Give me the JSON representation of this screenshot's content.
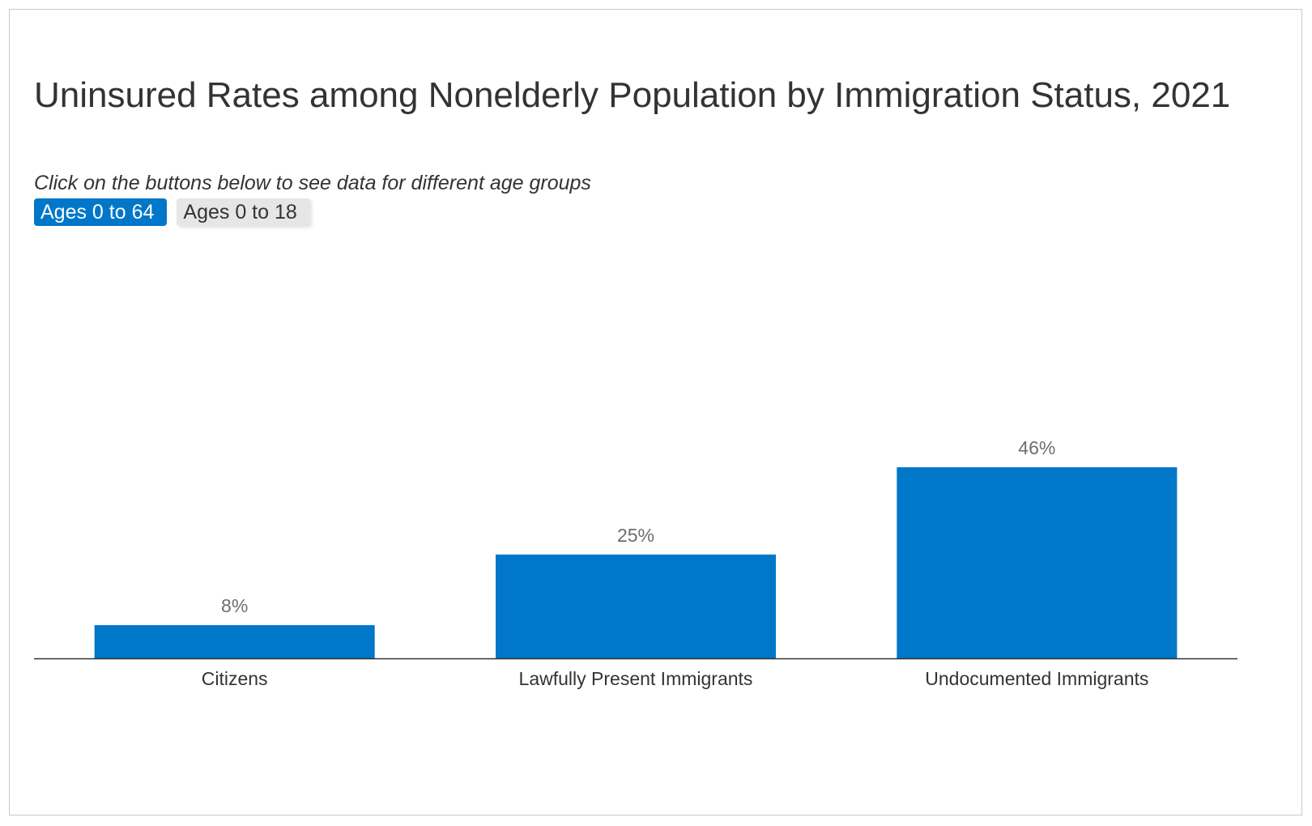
{
  "header": {
    "title": "Uninsured Rates among Nonelderly Population by Immigration Status, 2021",
    "subtitle": "Click on the buttons below to see data for different age groups"
  },
  "filters": {
    "buttons": [
      {
        "label": "Ages 0 to 64",
        "active": true
      },
      {
        "label": "Ages 0 to 18",
        "active": false
      }
    ]
  },
  "colors": {
    "bar": "#0077c8",
    "button_active": "#0077c8",
    "button_inactive": "#e6e6e6"
  },
  "chart_data": {
    "type": "bar",
    "title": "Uninsured Rates among Nonelderly Population by Immigration Status, 2021",
    "xlabel": "",
    "ylabel": "",
    "categories": [
      "Citizens",
      "Lawfully Present Immigrants",
      "Undocumented Immigrants"
    ],
    "values": [
      8,
      25,
      46
    ],
    "value_labels": [
      "8%",
      "25%",
      "46%"
    ],
    "unit": "%",
    "ylim": [
      0,
      100
    ],
    "grid": false,
    "legend": "none"
  }
}
